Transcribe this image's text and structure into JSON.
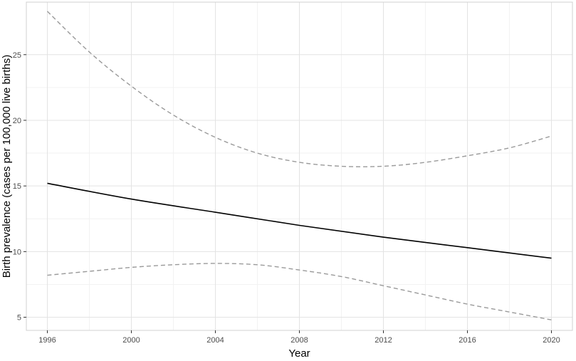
{
  "chart_data": {
    "type": "line",
    "xlabel": "Year",
    "ylabel": "Birth prevalence (cases per 100,000 live births)",
    "xlim": [
      1995,
      2021
    ],
    "ylim": [
      4.0,
      29.0
    ],
    "x_ticks": [
      1996,
      2000,
      2004,
      2008,
      2012,
      2016,
      2020
    ],
    "y_ticks": [
      5,
      10,
      15,
      20,
      25
    ],
    "grid": true,
    "legend": "none",
    "series": [
      {
        "role": "estimate",
        "style": "solid",
        "color": "#000000",
        "x": [
          1996,
          2000,
          2004,
          2008,
          2012,
          2016,
          2020
        ],
        "y": [
          15.2,
          14.0,
          13.0,
          12.0,
          11.1,
          10.3,
          9.5
        ]
      },
      {
        "role": "upper-bound",
        "style": "dashed",
        "color": "#9a9a9a",
        "x": [
          1996,
          1998,
          2000,
          2002,
          2004,
          2006,
          2008,
          2010,
          2012,
          2014,
          2016,
          2018,
          2020
        ],
        "y": [
          28.3,
          25.2,
          22.6,
          20.4,
          18.7,
          17.5,
          16.8,
          16.5,
          16.5,
          16.8,
          17.3,
          17.9,
          18.8
        ]
      },
      {
        "role": "lower-bound",
        "style": "dashed",
        "color": "#9a9a9a",
        "x": [
          1996,
          1998,
          2000,
          2002,
          2004,
          2006,
          2008,
          2010,
          2012,
          2014,
          2016,
          2018,
          2020
        ],
        "y": [
          8.2,
          8.5,
          8.8,
          9.0,
          9.1,
          9.0,
          8.6,
          8.1,
          7.4,
          6.7,
          6.0,
          5.4,
          4.8
        ]
      }
    ]
  }
}
